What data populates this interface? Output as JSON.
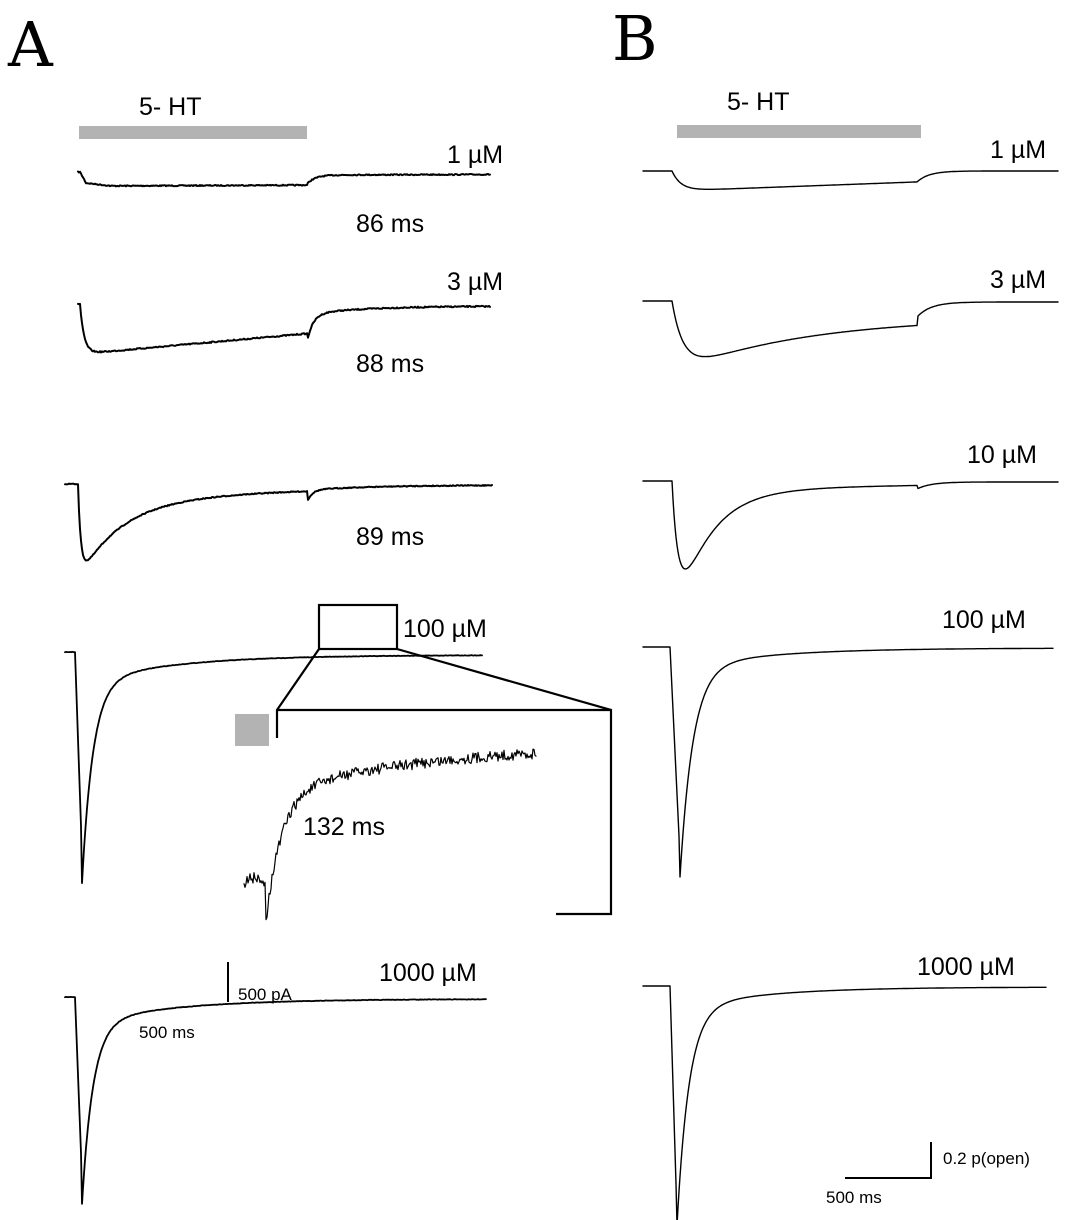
{
  "panels": {
    "a": {
      "letter": "A"
    },
    "b": {
      "letter": "B"
    }
  },
  "agonist_label": "5- HT",
  "colors": {
    "bar": "#b3b3b3",
    "trace": "#000000",
    "background": "#ffffff"
  },
  "panel_a": {
    "concentrations": [
      "1 µM",
      "3 µM",
      "100  µM",
      "1000 µM"
    ],
    "time_constants": [
      "86 ms",
      "88 ms",
      "89 ms"
    ],
    "inset_time_constant": "132 ms",
    "scale_bar": {
      "current": "500 pA",
      "time": "500 ms"
    }
  },
  "panel_b": {
    "concentrations": [
      "1 µM",
      "3 µM",
      "10  µM",
      "100 µM",
      "1000 µM"
    ],
    "scale_bar": {
      "open_probability": "0.2 p(open)",
      "time": "500 ms"
    }
  }
}
